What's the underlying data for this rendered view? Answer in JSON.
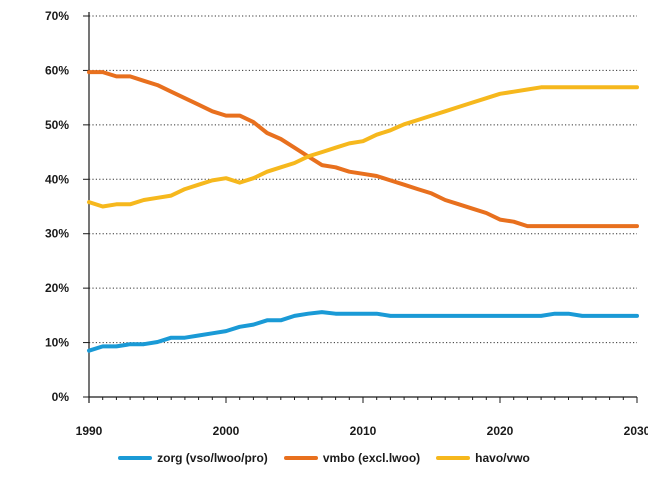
{
  "chart_data": {
    "type": "line",
    "title": "",
    "xlabel": "",
    "ylabel": "",
    "xlim": [
      1990,
      2030
    ],
    "ylim": [
      0,
      70
    ],
    "x_ticks": [
      1990,
      2000,
      2010,
      2020,
      2030
    ],
    "y_ticks": [
      0,
      10,
      20,
      30,
      40,
      50,
      60,
      70
    ],
    "y_tick_labels": [
      "0%",
      "10%",
      "20%",
      "30%",
      "40%",
      "50%",
      "60%",
      "70%"
    ],
    "grid": "horizontal-dotted",
    "legend_position": "bottom",
    "series": [
      {
        "name": "zorg (vso/lwoo/pro)",
        "color": "#1a9ad6",
        "x": [
          1990,
          1991,
          1992,
          1993,
          1994,
          1995,
          1996,
          1997,
          1998,
          1999,
          2000,
          2001,
          2002,
          2003,
          2004,
          2005,
          2006,
          2007,
          2008,
          2009,
          2010,
          2011,
          2012,
          2013,
          2014,
          2015,
          2016,
          2017,
          2018,
          2019,
          2020,
          2021,
          2022,
          2023,
          2024,
          2025,
          2026,
          2027,
          2028,
          2029,
          2030
        ],
        "values": [
          8.5,
          9.3,
          9.3,
          9.7,
          9.7,
          10.1,
          10.9,
          10.9,
          11.3,
          11.7,
          12.1,
          12.9,
          13.3,
          14.1,
          14.1,
          14.9,
          15.3,
          15.6,
          15.3,
          15.3,
          15.3,
          15.3,
          14.9,
          14.9,
          14.9,
          14.9,
          14.9,
          14.9,
          14.9,
          14.9,
          14.9,
          14.9,
          14.9,
          14.9,
          15.3,
          15.3,
          14.9,
          14.9,
          14.9,
          14.9,
          14.9
        ]
      },
      {
        "name": "vmbo (excl.lwoo)",
        "color": "#e8701e",
        "x": [
          1990,
          1991,
          1992,
          1993,
          1994,
          1995,
          1996,
          1997,
          1998,
          1999,
          2000,
          2001,
          2002,
          2003,
          2004,
          2005,
          2006,
          2007,
          2008,
          2009,
          2010,
          2011,
          2012,
          2013,
          2014,
          2015,
          2016,
          2017,
          2018,
          2019,
          2020,
          2021,
          2022,
          2023,
          2024,
          2025,
          2026,
          2027,
          2028,
          2029,
          2030
        ],
        "values": [
          59.7,
          59.7,
          58.9,
          58.9,
          58.1,
          57.3,
          56.1,
          54.9,
          53.7,
          52.5,
          51.7,
          51.7,
          50.5,
          48.5,
          47.4,
          45.8,
          44.2,
          42.6,
          42.2,
          41.4,
          41.0,
          40.6,
          39.8,
          39.0,
          38.2,
          37.4,
          36.2,
          35.4,
          34.6,
          33.8,
          32.6,
          32.2,
          31.4,
          31.4,
          31.4,
          31.4,
          31.4,
          31.4,
          31.4,
          31.4,
          31.4
        ]
      },
      {
        "name": "havo/vwo",
        "color": "#f6b81d",
        "x": [
          1990,
          1991,
          1992,
          1993,
          1994,
          1995,
          1996,
          1997,
          1998,
          1999,
          2000,
          2001,
          2002,
          2003,
          2004,
          2005,
          2006,
          2007,
          2008,
          2009,
          2010,
          2011,
          2012,
          2013,
          2014,
          2015,
          2016,
          2017,
          2018,
          2019,
          2020,
          2021,
          2022,
          2023,
          2024,
          2025,
          2026,
          2027,
          2028,
          2029,
          2030
        ],
        "values": [
          35.8,
          35.0,
          35.4,
          35.4,
          36.2,
          36.6,
          37.0,
          38.2,
          39.0,
          39.8,
          40.2,
          39.4,
          40.2,
          41.4,
          42.2,
          43.0,
          44.2,
          45.0,
          45.8,
          46.6,
          47.0,
          48.2,
          49.0,
          50.1,
          50.9,
          51.7,
          52.5,
          53.3,
          54.1,
          54.9,
          55.7,
          56.1,
          56.5,
          56.9,
          56.9,
          56.9,
          56.9,
          56.9,
          56.9,
          56.9,
          56.9
        ]
      }
    ]
  }
}
